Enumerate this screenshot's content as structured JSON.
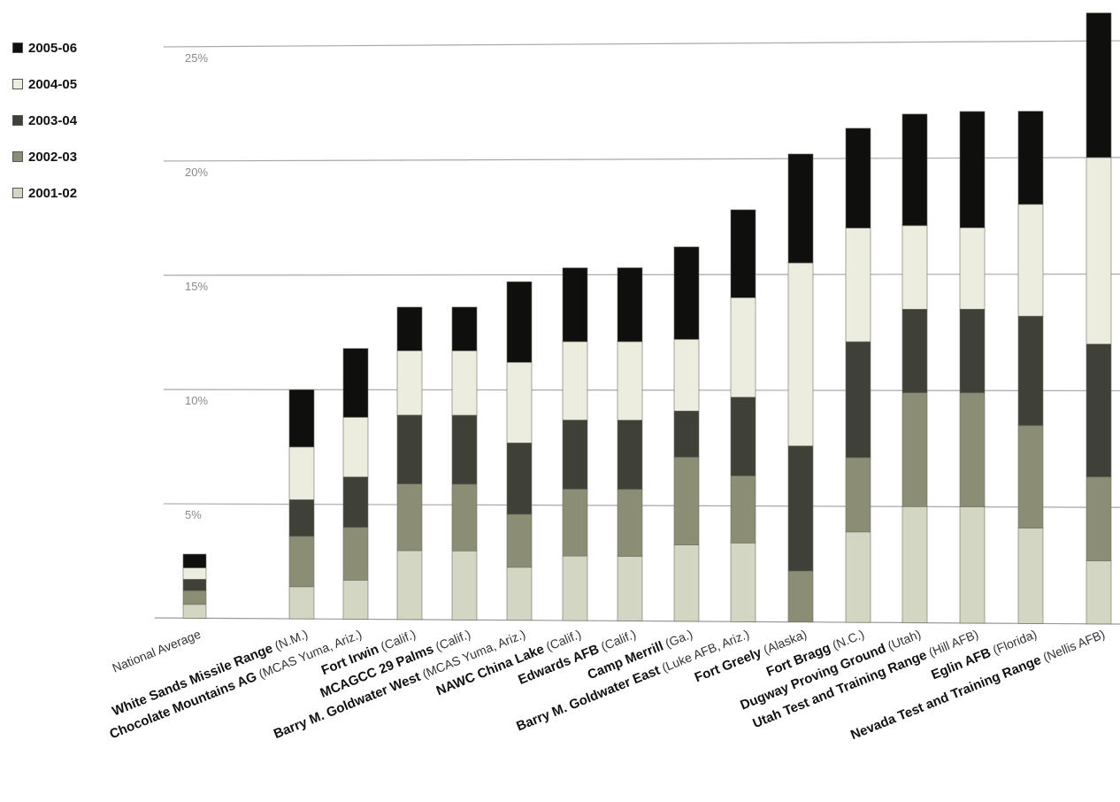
{
  "chart_data": {
    "type": "bar",
    "stacked": true,
    "categories": [
      {
        "bold": "",
        "normal": "National Average"
      },
      {
        "bold": "White Sands Missile Range",
        "normal": " (N.M.)"
      },
      {
        "bold": "Chocolate Mountains AG",
        "normal": " (MCAS Yuma, Ariz.)"
      },
      {
        "bold": "Fort Irwin",
        "normal": " (Calif.)"
      },
      {
        "bold": "MCAGCC 29 Palms",
        "normal": " (Calif.)"
      },
      {
        "bold": "Barry M. Goldwater West",
        "normal": " (MCAS Yuma, Ariz.)"
      },
      {
        "bold": "NAWC China Lake",
        "normal": " (Calif.)"
      },
      {
        "bold": "Edwards AFB",
        "normal": " (Calif.)"
      },
      {
        "bold": "Camp Merrill",
        "normal": " (Ga.)"
      },
      {
        "bold": "Barry M. Goldwater East",
        "normal": " (Luke AFB, Ariz.)"
      },
      {
        "bold": "Fort Greely",
        "normal": " (Alaska)"
      },
      {
        "bold": "Fort Bragg",
        "normal": " (N.C.)"
      },
      {
        "bold": "Dugway Proving Ground",
        "normal": " (Utah)"
      },
      {
        "bold": "Utah Test and Training Range",
        "normal": " (Hill AFB)"
      },
      {
        "bold": "Eglin AFB",
        "normal": " (Florida)"
      },
      {
        "bold": "Nevada Test and Training Range",
        "normal": " (Nellis AFB)"
      }
    ],
    "series": [
      {
        "name": "2001-02",
        "color": "#d3d6c2",
        "values": [
          0.6,
          1.4,
          1.7,
          3.0,
          3.0,
          2.3,
          2.8,
          2.8,
          3.3,
          3.4,
          0.0,
          3.9,
          5.0,
          5.0,
          4.1,
          2.7
        ]
      },
      {
        "name": "2002-03",
        "color": "#8b8e74",
        "values": [
          0.6,
          2.2,
          2.3,
          2.9,
          2.9,
          2.3,
          2.9,
          2.9,
          3.8,
          2.9,
          2.2,
          3.2,
          4.9,
          4.9,
          4.4,
          3.6
        ]
      },
      {
        "name": "2003-04",
        "color": "#3f4038",
        "values": [
          0.5,
          1.6,
          2.2,
          3.0,
          3.0,
          3.1,
          3.0,
          3.0,
          2.0,
          3.4,
          5.4,
          5.0,
          3.6,
          3.6,
          4.7,
          5.7
        ]
      },
      {
        "name": "2004-05",
        "color": "#ececdf",
        "values": [
          0.5,
          2.3,
          2.6,
          2.8,
          2.8,
          3.5,
          3.4,
          3.4,
          3.1,
          4.3,
          7.9,
          4.9,
          3.6,
          3.5,
          4.8,
          8.0
        ]
      },
      {
        "name": "2005-06",
        "color": "#0f0f0d",
        "values": [
          0.6,
          2.5,
          3.0,
          1.9,
          1.9,
          3.5,
          3.2,
          3.2,
          4.0,
          3.8,
          4.7,
          4.3,
          4.8,
          5.0,
          4.0,
          6.2
        ]
      }
    ],
    "legend_order": [
      "2005-06",
      "2004-05",
      "2003-04",
      "2002-03",
      "2001-02"
    ],
    "y_ticks": [
      "5%",
      "10%",
      "15%",
      "20%",
      "25%"
    ],
    "y_tick_values": [
      5,
      10,
      15,
      20,
      25
    ],
    "ylim": [
      0,
      26
    ],
    "grid": true,
    "legend_position": "top-left"
  }
}
